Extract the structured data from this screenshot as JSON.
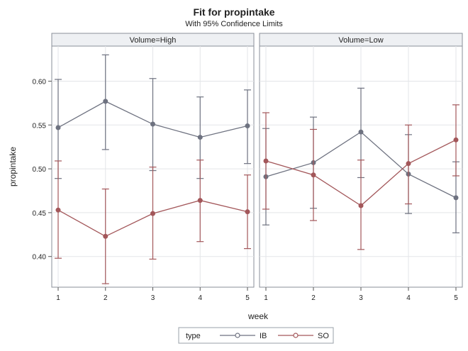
{
  "chart_data": {
    "type": "line",
    "title": "Fit for propintake",
    "subtitle": "With 95% Confidence Limits",
    "xlabel": "week",
    "ylabel": "propintake",
    "x": [
      1,
      2,
      3,
      4,
      5
    ],
    "x_ticks": [
      "1",
      "2",
      "3",
      "4",
      "5"
    ],
    "y_ticks": [
      "0.40",
      "0.45",
      "0.50",
      "0.55",
      "0.60"
    ],
    "ylim": [
      0.365,
      0.64
    ],
    "grid": true,
    "legend": {
      "title": "type",
      "placement": "bottom",
      "entries": [
        "IB",
        "SO"
      ]
    },
    "series_colors": {
      "IB": "#6e7280",
      "SO": "#a3575a"
    },
    "panels": [
      {
        "label": "Volume=High",
        "series": [
          {
            "name": "IB",
            "values": [
              0.547,
              0.577,
              0.551,
              0.536,
              0.549
            ],
            "lower": [
              0.489,
              0.522,
              0.498,
              0.489,
              0.506
            ],
            "upper": [
              0.602,
              0.63,
              0.603,
              0.582,
              0.59
            ]
          },
          {
            "name": "SO",
            "values": [
              0.453,
              0.423,
              0.449,
              0.464,
              0.451
            ],
            "lower": [
              0.398,
              0.369,
              0.397,
              0.417,
              0.409
            ],
            "upper": [
              0.509,
              0.477,
              0.502,
              0.51,
              0.493
            ]
          }
        ]
      },
      {
        "label": "Volume=Low",
        "series": [
          {
            "name": "IB",
            "values": [
              0.491,
              0.507,
              0.542,
              0.494,
              0.467
            ],
            "lower": [
              0.436,
              0.455,
              0.49,
              0.449,
              0.427
            ],
            "upper": [
              0.546,
              0.559,
              0.592,
              0.539,
              0.508
            ]
          },
          {
            "name": "SO",
            "values": [
              0.509,
              0.493,
              0.458,
              0.506,
              0.533
            ],
            "lower": [
              0.454,
              0.441,
              0.408,
              0.46,
              0.492
            ],
            "upper": [
              0.564,
              0.545,
              0.51,
              0.55,
              0.573
            ]
          }
        ]
      }
    ]
  }
}
